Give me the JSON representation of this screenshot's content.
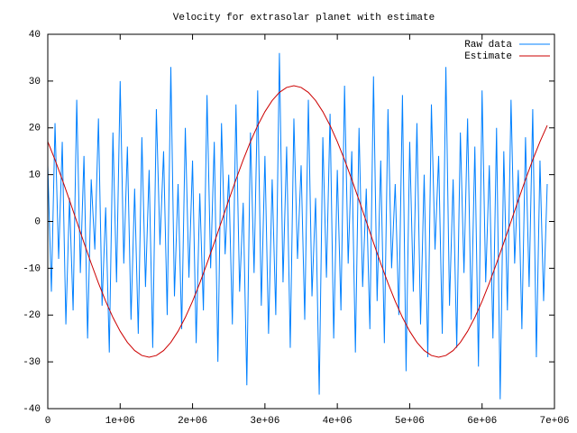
{
  "chart_data": {
    "type": "line",
    "title": "Velocity for extrasolar planet with estimate",
    "xlim": [
      0,
      7000000
    ],
    "ylim": [
      -40,
      40
    ],
    "xticks": [
      0,
      {
        "value": 1000000,
        "label": "1e+06"
      },
      {
        "value": 2000000,
        "label": "2e+06"
      },
      {
        "value": 3000000,
        "label": "3e+06"
      },
      {
        "value": 4000000,
        "label": "4e+06"
      },
      {
        "value": 5000000,
        "label": "5e+06"
      },
      {
        "value": 6000000,
        "label": "6e+06"
      },
      {
        "value": 7000000,
        "label": "7e+06"
      }
    ],
    "yticks": [
      -40,
      -30,
      -20,
      -10,
      0,
      10,
      20,
      30,
      40
    ],
    "legend": "top-right",
    "series": [
      {
        "name": "Raw data",
        "color": "#0080ff",
        "x": [
          0,
          50000,
          100000,
          150000,
          200000,
          250000,
          300000,
          350000,
          400000,
          450000,
          500000,
          550000,
          600000,
          650000,
          700000,
          750000,
          800000,
          850000,
          900000,
          950000,
          1000000,
          1050000,
          1100000,
          1150000,
          1200000,
          1250000,
          1300000,
          1350000,
          1400000,
          1450000,
          1500000,
          1550000,
          1600000,
          1650000,
          1700000,
          1750000,
          1800000,
          1850000,
          1900000,
          1950000,
          2000000,
          2050000,
          2100000,
          2150000,
          2200000,
          2250000,
          2300000,
          2350000,
          2400000,
          2450000,
          2500000,
          2550000,
          2600000,
          2650000,
          2700000,
          2750000,
          2800000,
          2850000,
          2900000,
          2950000,
          3000000,
          3050000,
          3100000,
          3150000,
          3200000,
          3250000,
          3300000,
          3350000,
          3400000,
          3450000,
          3500000,
          3550000,
          3600000,
          3650000,
          3700000,
          3750000,
          3800000,
          3850000,
          3900000,
          3950000,
          4000000,
          4050000,
          4100000,
          4150000,
          4200000,
          4250000,
          4300000,
          4350000,
          4400000,
          4450000,
          4500000,
          4550000,
          4600000,
          4650000,
          4700000,
          4750000,
          4800000,
          4850000,
          4900000,
          4950000,
          5000000,
          5050000,
          5100000,
          5150000,
          5200000,
          5250000,
          5300000,
          5350000,
          5400000,
          5450000,
          5500000,
          5550000,
          5600000,
          5650000,
          5700000,
          5750000,
          5800000,
          5850000,
          5900000,
          5950000,
          6000000,
          6050000,
          6100000,
          6150000,
          6200000,
          6250000,
          6300000,
          6350000,
          6400000,
          6450000,
          6500000,
          6550000,
          6600000,
          6650000,
          6700000,
          6750000,
          6800000,
          6850000,
          6900000
        ],
        "values": [
          12,
          -15,
          21,
          -8,
          17,
          -22,
          5,
          -19,
          26,
          -11,
          14,
          -25,
          9,
          -6,
          22,
          -18,
          3,
          -28,
          19,
          -13,
          30,
          -9,
          16,
          -21,
          7,
          -24,
          18,
          -14,
          11,
          -27,
          24,
          -5,
          15,
          -20,
          33,
          -16,
          8,
          -23,
          20,
          -12,
          13,
          -26,
          6,
          -19,
          27,
          -10,
          17,
          -30,
          21,
          -7,
          10,
          -22,
          25,
          -15,
          4,
          -35,
          19,
          -11,
          28,
          -18,
          14,
          -24,
          9,
          -20,
          36,
          -13,
          16,
          -27,
          22,
          -8,
          12,
          -21,
          26,
          -16,
          5,
          -37,
          18,
          -12,
          23,
          -25,
          11,
          -19,
          29,
          -9,
          15,
          -28,
          20,
          -14,
          7,
          -23,
          31,
          -17,
          13,
          -26,
          24,
          -10,
          8,
          -20,
          27,
          -32,
          17,
          -15,
          21,
          -22,
          10,
          -29,
          25,
          -6,
          14,
          -24,
          33,
          -18,
          9,
          -27,
          19,
          -11,
          22,
          -21,
          16,
          -31,
          28,
          -13,
          12,
          -25,
          20,
          -38,
          15,
          -19,
          26,
          -9,
          11,
          -23,
          18,
          -14,
          24,
          -29,
          13,
          -17,
          8
        ]
      },
      {
        "name": "Estimate",
        "color": "#cc0000",
        "x": [
          0,
          100000,
          200000,
          300000,
          400000,
          500000,
          600000,
          700000,
          800000,
          900000,
          1000000,
          1100000,
          1200000,
          1300000,
          1400000,
          1500000,
          1600000,
          1700000,
          1800000,
          1900000,
          2000000,
          2100000,
          2200000,
          2300000,
          2400000,
          2500000,
          2600000,
          2700000,
          2800000,
          2900000,
          3000000,
          3100000,
          3200000,
          3300000,
          3400000,
          3500000,
          3600000,
          3700000,
          3800000,
          3900000,
          4000000,
          4100000,
          4200000,
          4300000,
          4400000,
          4500000,
          4600000,
          4700000,
          4800000,
          4900000,
          5000000,
          5100000,
          5200000,
          5300000,
          5400000,
          5500000,
          5600000,
          5700000,
          5800000,
          5900000,
          6000000,
          6100000,
          6200000,
          6300000,
          6400000,
          6500000,
          6600000,
          6700000,
          6800000,
          6900000
        ],
        "values": [
          17.05,
          13.17,
          8.96,
          4.54,
          0,
          -4.54,
          -8.96,
          -13.17,
          -17.05,
          -20.51,
          -23.46,
          -25.84,
          -27.58,
          -28.64,
          -29,
          -28.64,
          -27.58,
          -25.84,
          -23.46,
          -20.51,
          -17.05,
          -13.17,
          -8.96,
          -4.54,
          0,
          4.54,
          8.96,
          13.17,
          17.05,
          20.51,
          23.46,
          25.84,
          27.58,
          28.64,
          29,
          28.64,
          27.58,
          25.84,
          23.46,
          20.51,
          17.05,
          13.17,
          8.96,
          4.54,
          0,
          -4.54,
          -8.96,
          -13.17,
          -17.05,
          -20.51,
          -23.46,
          -25.84,
          -27.58,
          -28.64,
          -29,
          -28.64,
          -27.58,
          -25.84,
          -23.46,
          -20.51,
          -17.05,
          -13.17,
          -8.96,
          -4.54,
          0,
          4.54,
          8.96,
          13.17,
          17.05,
          20.51
        ]
      }
    ]
  }
}
